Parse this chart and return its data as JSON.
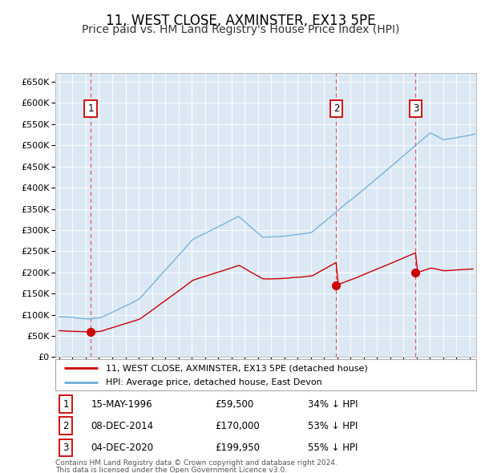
{
  "title": "11, WEST CLOSE, AXMINSTER, EX13 5PE",
  "subtitle": "Price paid vs. HM Land Registry's House Price Index (HPI)",
  "title_fontsize": 12,
  "subtitle_fontsize": 10,
  "background_color": "#ffffff",
  "plot_bg_color": "#dce9f5",
  "transactions": [
    {
      "num": 1,
      "date_str": "15-MAY-1996",
      "year": 1996.37,
      "price": 59500,
      "pct": "34% ↓ HPI"
    },
    {
      "num": 2,
      "date_str": "08-DEC-2014",
      "year": 2014.93,
      "price": 170000,
      "pct": "53% ↓ HPI"
    },
    {
      "num": 3,
      "date_str": "04-DEC-2020",
      "year": 2020.92,
      "price": 199950,
      "pct": "55% ↓ HPI"
    }
  ],
  "legend_line1": "11, WEST CLOSE, AXMINSTER, EX13 5PE (detached house)",
  "legend_line2": "HPI: Average price, detached house, East Devon",
  "footer1": "Contains HM Land Registry data © Crown copyright and database right 2024.",
  "footer2": "This data is licensed under the Open Government Licence v3.0.",
  "xlim": [
    1993.7,
    2025.5
  ],
  "ylim": [
    0,
    670000
  ],
  "yticks": [
    0,
    50000,
    100000,
    150000,
    200000,
    250000,
    300000,
    350000,
    400000,
    450000,
    500000,
    550000,
    600000,
    650000
  ],
  "red_line_color": "#cc0000",
  "blue_line_color": "#6baed6",
  "marker_color": "#cc0000",
  "dashed_color": "#e06060",
  "hpi_start_year": 1994,
  "hpi_end_year": 2025.5,
  "red_start_year": 1994,
  "red_end_year": 2025.3
}
